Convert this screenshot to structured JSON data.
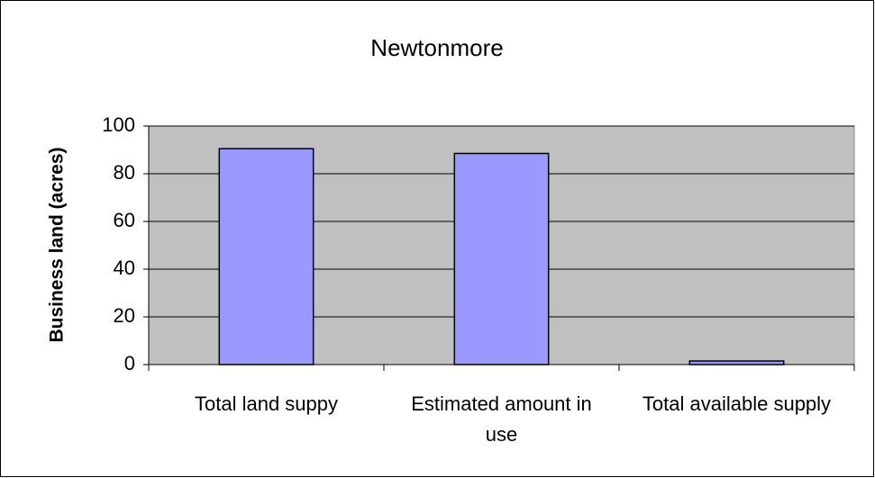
{
  "chart_data": {
    "type": "bar",
    "title": "Newtonmore",
    "y_label": "Business land (acres)",
    "categories": [
      "Total land suppy",
      "Estimated amount in use",
      "Total available supply"
    ],
    "values": [
      90.5,
      88.5,
      1.5
    ],
    "color": "#9999ff",
    "ylim": [
      0,
      100
    ],
    "yticks": [
      0,
      20,
      40,
      60,
      80,
      100
    ],
    "grid": true
  }
}
